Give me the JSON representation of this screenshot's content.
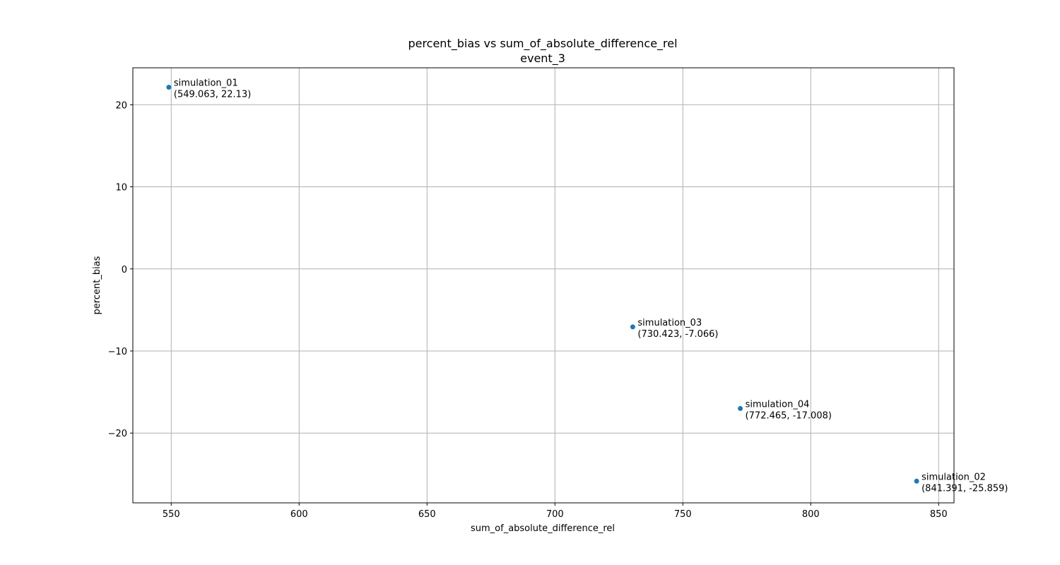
{
  "chart_data": {
    "type": "scatter",
    "title": "percent_bias vs sum_of_absolute_difference_rel",
    "subtitle": "event_3",
    "xlabel": "sum_of_absolute_difference_rel",
    "ylabel": "percent_bias",
    "xlim": [
      535,
      856
    ],
    "ylim": [
      -28.5,
      24.5
    ],
    "xticks": [
      550,
      600,
      650,
      700,
      750,
      800,
      850
    ],
    "xtick_labels": [
      "550",
      "600",
      "650",
      "700",
      "750",
      "800",
      "850"
    ],
    "yticks": [
      -20,
      -10,
      0,
      10,
      20
    ],
    "ytick_labels": [
      "−20",
      "−10",
      "0",
      "10",
      "20"
    ],
    "grid": true,
    "marker_color": "#1f77b4",
    "points": [
      {
        "name": "simulation_01",
        "x": 549.063,
        "y": 22.13,
        "coord_label": "(549.063, 22.13)"
      },
      {
        "name": "simulation_03",
        "x": 730.423,
        "y": -7.066,
        "coord_label": "(730.423, -7.066)"
      },
      {
        "name": "simulation_04",
        "x": 772.465,
        "y": -17.008,
        "coord_label": "(772.465, -17.008)"
      },
      {
        "name": "simulation_02",
        "x": 841.391,
        "y": -25.859,
        "coord_label": "(841.391, -25.859)"
      }
    ]
  }
}
